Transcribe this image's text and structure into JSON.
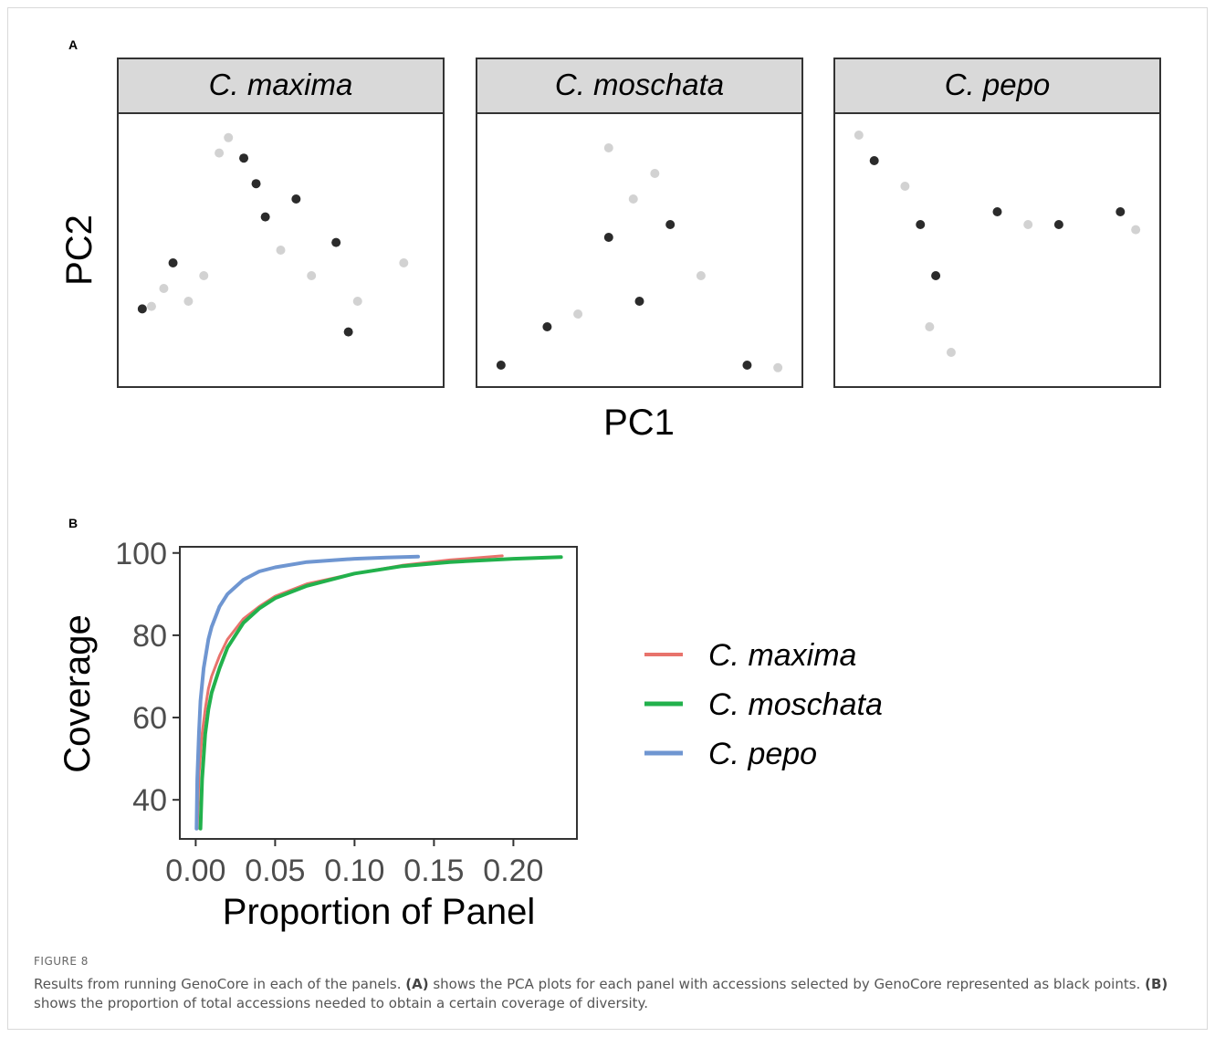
{
  "panel_labels": {
    "a": "A",
    "b": "B"
  },
  "caption": {
    "label": "FIGURE 8",
    "t1": "Results from running GenoCore in each of the panels. ",
    "b1": "(A)",
    "t2": " shows the PCA plots for each panel with accessions selected by GenoCore represented as black points. ",
    "b2": "(B)",
    "t3": " shows the proportion of total accessions needed to obtain a certain coverage of diversity."
  },
  "colors": {
    "selected_point": "#141414",
    "other_point": "#cdcdcd",
    "strip_fill": "#d9d9d9",
    "c_maxima": "#e8736c",
    "c_moschata": "#22b14c",
    "c_pepo": "#6f96d1"
  },
  "chart_data": [
    {
      "type": "scatter",
      "xlabel": "PC1",
      "ylabel": "PC2",
      "facets": [
        {
          "name": "C. maxima",
          "groups": [
            {
              "name": "selected",
              "points": [
                [
                  0.05,
                  0.73
                ],
                [
                  0.15,
                  0.55
                ],
                [
                  0.38,
                  0.14
                ],
                [
                  0.42,
                  0.24
                ],
                [
                  0.45,
                  0.37
                ],
                [
                  0.68,
                  0.47
                ],
                [
                  0.55,
                  0.3
                ],
                [
                  0.72,
                  0.82
                ]
              ]
            },
            {
              "name": "other",
              "points": [
                [
                  0.08,
                  0.72
                ],
                [
                  0.12,
                  0.65
                ],
                [
                  0.2,
                  0.7
                ],
                [
                  0.25,
                  0.6
                ],
                [
                  0.3,
                  0.12
                ],
                [
                  0.33,
                  0.06
                ],
                [
                  0.5,
                  0.5
                ],
                [
                  0.6,
                  0.6
                ],
                [
                  0.75,
                  0.7
                ],
                [
                  0.9,
                  0.55
                ]
              ]
            }
          ]
        },
        {
          "name": "C. moschata",
          "groups": [
            {
              "name": "selected",
              "points": [
                [
                  0.05,
                  0.95
                ],
                [
                  0.2,
                  0.8
                ],
                [
                  0.4,
                  0.45
                ],
                [
                  0.5,
                  0.7
                ],
                [
                  0.6,
                  0.4
                ],
                [
                  0.85,
                  0.95
                ]
              ]
            },
            {
              "name": "other",
              "points": [
                [
                  0.4,
                  0.1
                ],
                [
                  0.48,
                  0.3
                ],
                [
                  0.55,
                  0.2
                ],
                [
                  0.3,
                  0.75
                ],
                [
                  0.7,
                  0.6
                ],
                [
                  0.95,
                  0.96
                ]
              ]
            }
          ]
        },
        {
          "name": "C. pepo",
          "groups": [
            {
              "name": "selected",
              "points": [
                [
                  0.1,
                  0.15
                ],
                [
                  0.25,
                  0.4
                ],
                [
                  0.3,
                  0.6
                ],
                [
                  0.5,
                  0.35
                ],
                [
                  0.7,
                  0.4
                ],
                [
                  0.9,
                  0.35
                ]
              ]
            },
            {
              "name": "other",
              "points": [
                [
                  0.05,
                  0.05
                ],
                [
                  0.2,
                  0.25
                ],
                [
                  0.28,
                  0.8
                ],
                [
                  0.35,
                  0.9
                ],
                [
                  0.6,
                  0.4
                ],
                [
                  0.95,
                  0.42
                ]
              ]
            }
          ]
        }
      ]
    },
    {
      "type": "line",
      "xlabel": "Proportion of Panel",
      "ylabel": "Coverage",
      "xlim": [
        -0.01,
        0.24
      ],
      "ylim": [
        30.5,
        101.5
      ],
      "x_ticks": [
        "0.00",
        "0.05",
        "0.10",
        "0.15",
        "0.20"
      ],
      "y_ticks": [
        "40",
        "60",
        "80",
        "100"
      ],
      "legend_position": "right",
      "series": [
        {
          "name": "C. maxima",
          "x": [
            0.001,
            0.002,
            0.004,
            0.006,
            0.008,
            0.01,
            0.015,
            0.02,
            0.03,
            0.04,
            0.05,
            0.07,
            0.1,
            0.13,
            0.16,
            0.193
          ],
          "y": [
            33,
            46,
            56,
            62,
            67,
            70,
            75,
            79,
            84,
            87,
            89.5,
            92.5,
            95,
            97,
            98.3,
            99.3
          ]
        },
        {
          "name": "C. moschata",
          "x": [
            0.003,
            0.004,
            0.006,
            0.008,
            0.01,
            0.015,
            0.02,
            0.03,
            0.04,
            0.05,
            0.07,
            0.1,
            0.13,
            0.16,
            0.2,
            0.23
          ],
          "y": [
            33,
            45,
            56,
            62,
            66,
            72,
            77,
            83,
            86.5,
            89,
            92,
            95,
            96.8,
            97.8,
            98.6,
            99
          ]
        },
        {
          "name": "C. pepo",
          "x": [
            0.0005,
            0.001,
            0.002,
            0.003,
            0.005,
            0.008,
            0.01,
            0.015,
            0.02,
            0.03,
            0.04,
            0.05,
            0.07,
            0.1,
            0.12,
            0.14
          ],
          "y": [
            33,
            45,
            56,
            64,
            72,
            79,
            82,
            87,
            90,
            93.5,
            95.5,
            96.5,
            97.8,
            98.6,
            98.9,
            99.1
          ]
        }
      ]
    }
  ]
}
